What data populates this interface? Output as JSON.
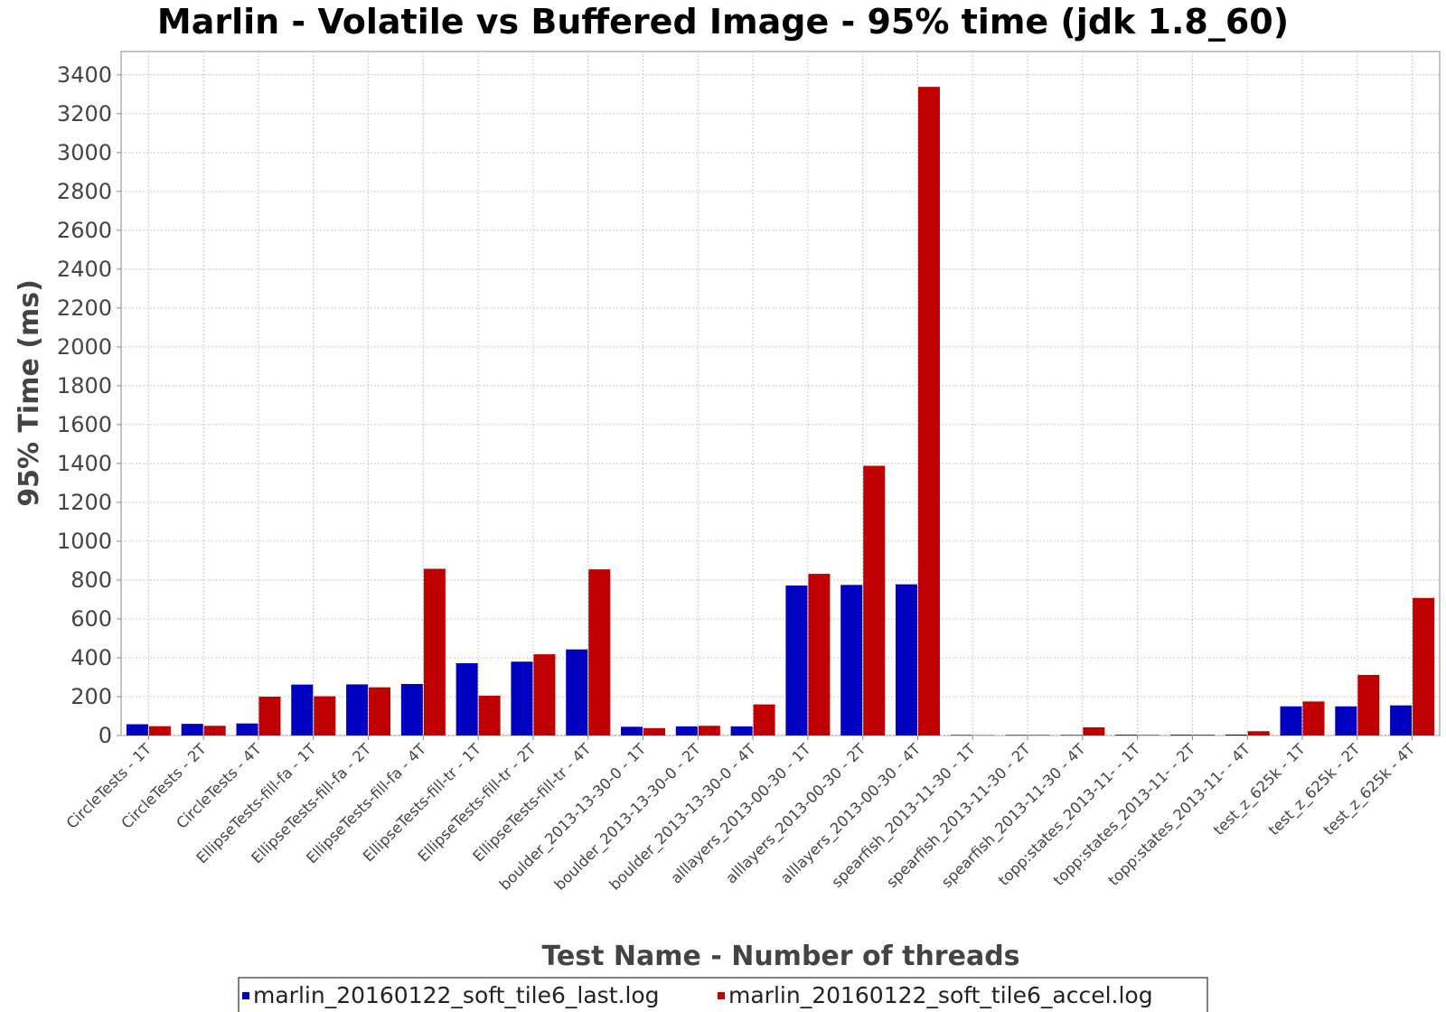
{
  "chart_data": {
    "type": "bar",
    "title": "Marlin - Volatile vs Buffered Image - 95% time (jdk 1.8_60)",
    "xlabel": "Test Name - Number of threads",
    "ylabel": "95% Time (ms)",
    "ylim": [
      0,
      3400
    ],
    "yticks": [
      0,
      200,
      400,
      600,
      800,
      1000,
      1200,
      1400,
      1600,
      1800,
      2000,
      2200,
      2400,
      2600,
      2800,
      3000,
      3200,
      3400
    ],
    "grid": true,
    "legend_position": "bottom",
    "categories": [
      "CircleTests - 1T",
      "CircleTests - 2T",
      "CircleTests - 4T",
      "EllipseTests-fill-fa - 1T",
      "EllipseTests-fill-fa - 2T",
      "EllipseTests-fill-fa - 4T",
      "EllipseTests-fill-tr - 1T",
      "EllipseTests-fill-tr - 2T",
      "EllipseTests-fill-tr - 4T",
      "boulder_2013-13-30-0 - 1T",
      "boulder_2013-13-30-0 - 2T",
      "boulder_2013-13-30-0 - 4T",
      "alllayers_2013-00-30 - 1T",
      "alllayers_2013-00-30 - 2T",
      "alllayers_2013-00-30 - 4T",
      "spearfish_2013-11-30 - 1T",
      "spearfish_2013-11-30 - 2T",
      "spearfish_2013-11-30 - 4T",
      "topp:states_2013-11- - 1T",
      "topp:states_2013-11- - 2T",
      "topp:states_2013-11- - 4T",
      "test_z_625k - 1T",
      "test_z_625k - 2T",
      "test_z_625k - 4T"
    ],
    "series": [
      {
        "name": "marlin_20160122_soft_tile6_last.log",
        "color": "#0000C0",
        "values": [
          58,
          60,
          62,
          262,
          263,
          265,
          372,
          380,
          443,
          45,
          47,
          47,
          772,
          775,
          778,
          3,
          3,
          3,
          4,
          4,
          5,
          150,
          150,
          155
        ]
      },
      {
        "name": "marlin_20160122_soft_tile6_accel.log",
        "color": "#C00000",
        "values": [
          48,
          50,
          200,
          202,
          248,
          858,
          205,
          418,
          855,
          38,
          50,
          160,
          832,
          1388,
          3338,
          2,
          3,
          42,
          3,
          4,
          22,
          175,
          312,
          708
        ]
      }
    ]
  }
}
